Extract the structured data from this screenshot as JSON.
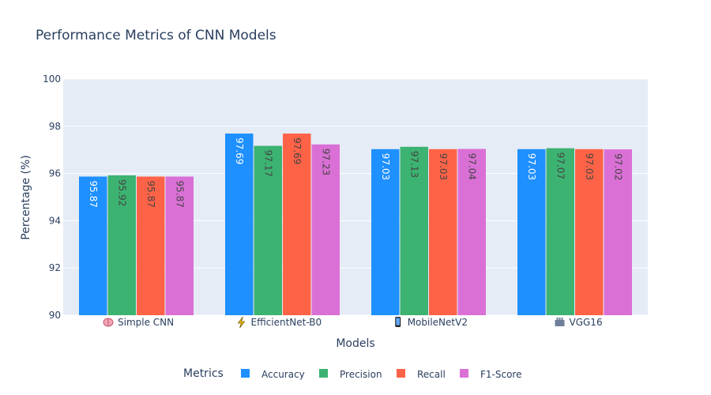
{
  "chart_data": {
    "type": "bar",
    "title": "Performance Metrics of CNN Models",
    "xlabel": "Models",
    "ylabel": "Percentage (%)",
    "ylim": [
      90,
      100
    ],
    "yticks": [
      90,
      92,
      94,
      96,
      98,
      100
    ],
    "grid": true,
    "legend_title": "Metrics",
    "legend_position": "bottom",
    "categories": [
      {
        "label": "Simple CNN",
        "icon": "brain-icon"
      },
      {
        "label": "EfficientNet-B0",
        "icon": "lightning-icon"
      },
      {
        "label": "MobileNetV2",
        "icon": "mobile-phone-icon"
      },
      {
        "label": "VGG16",
        "icon": "building-icon"
      }
    ],
    "series": [
      {
        "name": "Accuracy",
        "color": "#1e90ff",
        "values": [
          95.87,
          97.69,
          97.03,
          97.03
        ],
        "labels": [
          "95.87",
          "97.69",
          "97.03",
          "97.03"
        ]
      },
      {
        "name": "Precision",
        "color": "#3cb371",
        "values": [
          95.92,
          97.17,
          97.13,
          97.07
        ],
        "labels": [
          "95.92",
          "97.17",
          "97.13",
          "97.07"
        ]
      },
      {
        "name": "Recall",
        "color": "#ff6347",
        "values": [
          95.87,
          97.69,
          97.03,
          97.03
        ],
        "labels": [
          "95.87",
          "97.69",
          "97.03",
          "97.03"
        ]
      },
      {
        "name": "F1-Score",
        "color": "#da70d6",
        "values": [
          95.87,
          97.23,
          97.04,
          97.02
        ],
        "labels": [
          "95.87",
          "97.23",
          "97.04",
          "97.02"
        ]
      }
    ],
    "plot_background": "#e5ecf6",
    "grid_color": "#ffffff"
  }
}
